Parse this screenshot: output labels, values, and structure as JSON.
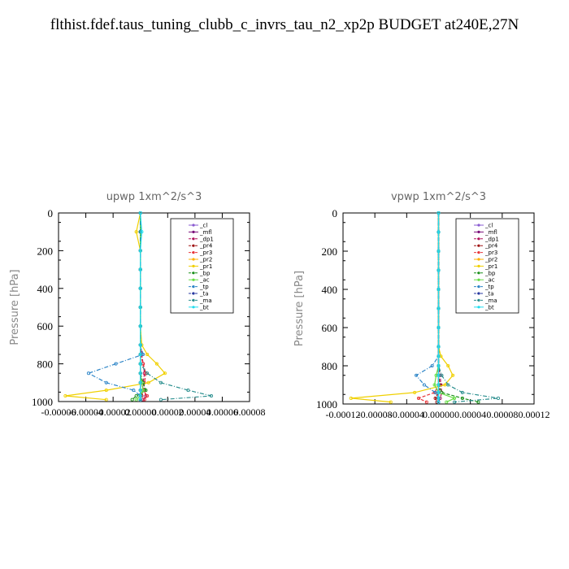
{
  "title": "flthist.fdef.taus_tuning_clubb_c_invrs_tau_n2_xp2p  BUDGET at240E,27N",
  "colors": {
    "_cl": "#8a5bd1",
    "_mfl": "#7a0f7a",
    "_dp1": "#b0125c",
    "_pr4": "#a01616",
    "_pr3": "#e8363a",
    "_pr2": "#ffb000",
    "_pr1": "#f0d000",
    "_bp": "#1a8f1a",
    "_ac": "#66dd44",
    "_tp": "#2f86c8",
    "_ta": "#2838a0",
    "_ma": "#2b8f8f",
    "_bt": "#22ddee"
  },
  "chart_data": [
    {
      "type": "line",
      "title": "upwp   1xm^2/s^3",
      "ylabel": "Pressure [hPa]",
      "ylim": [
        1000,
        0
      ],
      "yticks": [
        "0",
        "200",
        "400",
        "600",
        "800",
        "1000"
      ],
      "xlim": [
        -6e-05,
        8e-05
      ],
      "xticks": [
        "-0.00006",
        "-0.00004",
        "-0.00002",
        "0.00000",
        "0.00002",
        "0.00004",
        "0.00006",
        "0.00008"
      ],
      "legend_position": "top-right",
      "legend": [
        "_cl",
        "_mfl",
        "_dp1",
        "_pr4",
        "_pr3",
        "_pr2",
        "_pr1",
        "_bp",
        "_ac",
        "_tp",
        "_ta",
        "_ma",
        "_bt"
      ],
      "series": [
        {
          "name": "_cl",
          "x": [
            0,
            0,
            0,
            0,
            0,
            0,
            0,
            0,
            0,
            0,
            0,
            0,
            0,
            0,
            0
          ],
          "y": [
            0,
            100,
            200,
            300,
            400,
            500,
            600,
            700,
            750,
            800,
            850,
            900,
            940,
            970,
            990
          ]
        },
        {
          "name": "_mfl",
          "x": [
            0,
            0,
            0,
            0,
            0,
            0,
            0,
            0,
            0,
            0,
            0,
            0,
            0,
            0,
            0
          ],
          "y": [
            0,
            100,
            200,
            300,
            400,
            500,
            600,
            700,
            750,
            800,
            850,
            900,
            940,
            970,
            990
          ]
        },
        {
          "name": "_dp1",
          "x": [
            0,
            0,
            0,
            0,
            0,
            0,
            0,
            0,
            1e-06,
            2e-06,
            3e-06,
            2e-06,
            3e-06,
            4e-06,
            2e-06
          ],
          "y": [
            0,
            100,
            200,
            300,
            400,
            500,
            600,
            700,
            750,
            800,
            850,
            900,
            940,
            970,
            990
          ]
        },
        {
          "name": "_pr4",
          "x": [
            0,
            0,
            0,
            0,
            0,
            0,
            0,
            0,
            0,
            0,
            0,
            1e-06,
            2e-06,
            1e-06,
            0
          ],
          "y": [
            0,
            100,
            200,
            300,
            400,
            500,
            600,
            700,
            750,
            800,
            850,
            900,
            940,
            970,
            990
          ]
        },
        {
          "name": "_pr3",
          "x": [
            0,
            0,
            0,
            0,
            0,
            0,
            0,
            0,
            0,
            2e-06,
            4e-06,
            3e-06,
            2e-06,
            5e-06,
            3e-06
          ],
          "y": [
            0,
            100,
            200,
            300,
            400,
            500,
            600,
            700,
            750,
            800,
            850,
            900,
            940,
            970,
            990
          ]
        },
        {
          "name": "_pr2",
          "x": [
            0,
            0,
            0,
            0,
            0,
            0,
            0,
            0,
            0,
            0,
            0,
            0,
            0,
            0,
            0
          ],
          "y": [
            0,
            100,
            200,
            300,
            400,
            500,
            600,
            700,
            750,
            800,
            850,
            900,
            940,
            970,
            990
          ]
        },
        {
          "name": "_pr1",
          "x": [
            0,
            -3e-06,
            0,
            0,
            0,
            0,
            0,
            1e-06,
            5e-06,
            1.2e-05,
            1.8e-05,
            6e-06,
            -2.5e-05,
            -5.5e-05,
            -2.5e-05
          ],
          "y": [
            0,
            100,
            200,
            300,
            400,
            500,
            600,
            700,
            750,
            800,
            850,
            900,
            940,
            970,
            990
          ]
        },
        {
          "name": "_bp",
          "x": [
            0,
            0,
            0,
            0,
            0,
            0,
            0,
            0,
            0,
            0,
            0,
            2e-06,
            4e-06,
            -3e-06,
            -6e-06
          ],
          "y": [
            0,
            100,
            200,
            300,
            400,
            500,
            600,
            700,
            750,
            800,
            850,
            900,
            940,
            970,
            990
          ]
        },
        {
          "name": "_ac",
          "x": [
            0,
            0,
            0,
            0,
            0,
            0,
            0,
            0,
            0,
            0,
            0,
            1e-06,
            2e-06,
            0,
            -3e-06
          ],
          "y": [
            0,
            100,
            200,
            300,
            400,
            500,
            600,
            700,
            750,
            800,
            850,
            900,
            940,
            970,
            990
          ]
        },
        {
          "name": "_tp",
          "x": [
            0,
            0,
            0,
            0,
            0,
            0,
            0,
            0,
            2e-06,
            -1.8e-05,
            -3.8e-05,
            -2.5e-05,
            -5e-06,
            0,
            0
          ],
          "y": [
            0,
            100,
            200,
            300,
            400,
            500,
            600,
            700,
            750,
            800,
            850,
            900,
            940,
            970,
            990
          ]
        },
        {
          "name": "_ta",
          "x": [
            0,
            0,
            0,
            0,
            0,
            0,
            0,
            0,
            0,
            0,
            0,
            0,
            0,
            0,
            0
          ],
          "y": [
            0,
            100,
            200,
            300,
            400,
            500,
            600,
            700,
            750,
            800,
            850,
            900,
            940,
            970,
            990
          ]
        },
        {
          "name": "_ma",
          "x": [
            0,
            0,
            0,
            0,
            0,
            0,
            0,
            0,
            0,
            0,
            5e-06,
            1.5e-05,
            3.5e-05,
            5.2e-05,
            1.5e-05
          ],
          "y": [
            0,
            100,
            200,
            300,
            400,
            500,
            600,
            700,
            750,
            800,
            850,
            900,
            940,
            970,
            990
          ]
        },
        {
          "name": "_bt",
          "x": [
            0,
            1e-06,
            0,
            0,
            0,
            0,
            0,
            0,
            0,
            0,
            0,
            0,
            0,
            0,
            0
          ],
          "y": [
            0,
            100,
            200,
            300,
            400,
            500,
            600,
            700,
            750,
            800,
            850,
            900,
            940,
            970,
            990
          ]
        }
      ]
    },
    {
      "type": "line",
      "title": "vpwp   1xm^2/s^3",
      "ylabel": "Pressure [hPa]",
      "ylim": [
        1000,
        0
      ],
      "yticks": [
        "0",
        "200",
        "400",
        "600",
        "800",
        "1000"
      ],
      "xlim": [
        -0.00012,
        0.00012
      ],
      "xticks": [
        "-0.00012",
        "-0.00008",
        "-0.00004",
        "0.00000",
        "0.00004",
        "0.00008",
        "0.00012"
      ],
      "legend_position": "top-right",
      "legend": [
        "_cl",
        "_mfl",
        "_dp1",
        "_pr4",
        "_pr3",
        "_pr2",
        "_pr1",
        "_bp",
        "_ac",
        "_tp",
        "_ta",
        "_ma",
        "_bt"
      ],
      "series": [
        {
          "name": "_cl",
          "x": [
            0,
            0,
            0,
            0,
            0,
            0,
            0,
            0,
            0,
            0,
            0,
            0,
            0,
            0,
            0
          ],
          "y": [
            0,
            100,
            200,
            300,
            400,
            500,
            600,
            700,
            750,
            800,
            850,
            900,
            940,
            970,
            990
          ]
        },
        {
          "name": "_mfl",
          "x": [
            0,
            0,
            0,
            0,
            0,
            0,
            0,
            0,
            0,
            0,
            0,
            0,
            0,
            0,
            0
          ],
          "y": [
            0,
            100,
            200,
            300,
            400,
            500,
            600,
            700,
            750,
            800,
            850,
            900,
            940,
            970,
            990
          ]
        },
        {
          "name": "_dp1",
          "x": [
            0,
            0,
            0,
            0,
            0,
            0,
            0,
            0,
            0,
            0,
            2e-06,
            3e-06,
            4e-06,
            2e-06,
            0
          ],
          "y": [
            0,
            100,
            200,
            300,
            400,
            500,
            600,
            700,
            750,
            800,
            850,
            900,
            940,
            970,
            990
          ]
        },
        {
          "name": "_pr4",
          "x": [
            0,
            0,
            0,
            0,
            0,
            0,
            0,
            0,
            0,
            0,
            0,
            2e-06,
            0,
            -4e-06,
            -2e-06
          ],
          "y": [
            0,
            100,
            200,
            300,
            400,
            500,
            600,
            700,
            750,
            800,
            850,
            900,
            940,
            970,
            990
          ]
        },
        {
          "name": "_pr3",
          "x": [
            0,
            0,
            0,
            0,
            0,
            0,
            0,
            0,
            0,
            0,
            0,
            0,
            -5e-06,
            -2.5e-05,
            -1.5e-05
          ],
          "y": [
            0,
            100,
            200,
            300,
            400,
            500,
            600,
            700,
            750,
            800,
            850,
            900,
            940,
            970,
            990
          ]
        },
        {
          "name": "_pr2",
          "x": [
            0,
            0,
            0,
            0,
            0,
            0,
            0,
            0,
            0,
            0,
            0,
            0,
            0,
            0,
            0
          ],
          "y": [
            0,
            100,
            200,
            300,
            400,
            500,
            600,
            700,
            750,
            800,
            850,
            900,
            940,
            970,
            990
          ]
        },
        {
          "name": "_pr1",
          "x": [
            0,
            0,
            0,
            0,
            0,
            0,
            0,
            0,
            3e-06,
            1.2e-05,
            1.8e-05,
            8e-06,
            -3e-05,
            -0.00011,
            -6e-05
          ],
          "y": [
            0,
            100,
            200,
            300,
            400,
            500,
            600,
            700,
            750,
            800,
            850,
            900,
            940,
            970,
            990
          ]
        },
        {
          "name": "_bp",
          "x": [
            0,
            0,
            0,
            0,
            0,
            0,
            0,
            0,
            0,
            0,
            0,
            0,
            4e-06,
            3e-05,
            5e-05
          ],
          "y": [
            0,
            100,
            200,
            300,
            400,
            500,
            600,
            700,
            750,
            800,
            850,
            900,
            940,
            970,
            990
          ]
        },
        {
          "name": "_ac",
          "x": [
            0,
            0,
            0,
            0,
            0,
            0,
            0,
            0,
            0,
            0,
            -3e-06,
            -5e-06,
            0,
            2e-05,
            1e-05
          ],
          "y": [
            0,
            100,
            200,
            300,
            400,
            500,
            600,
            700,
            750,
            800,
            850,
            900,
            940,
            970,
            990
          ]
        },
        {
          "name": "_tp",
          "x": [
            0,
            0,
            0,
            0,
            0,
            0,
            0,
            0,
            0,
            -8e-06,
            -2.8e-05,
            -1.8e-05,
            -4e-06,
            0,
            0
          ],
          "y": [
            0,
            100,
            200,
            300,
            400,
            500,
            600,
            700,
            750,
            800,
            850,
            900,
            940,
            970,
            990
          ]
        },
        {
          "name": "_ta",
          "x": [
            0,
            0,
            0,
            0,
            0,
            0,
            0,
            0,
            0,
            0,
            0,
            0,
            0,
            0,
            0
          ],
          "y": [
            0,
            100,
            200,
            300,
            400,
            500,
            600,
            700,
            750,
            800,
            850,
            900,
            940,
            970,
            990
          ]
        },
        {
          "name": "_ma",
          "x": [
            0,
            0,
            0,
            0,
            0,
            0,
            0,
            0,
            0,
            0,
            4e-06,
            1.2e-05,
            3e-05,
            7.5e-05,
            2e-05
          ],
          "y": [
            0,
            100,
            200,
            300,
            400,
            500,
            600,
            700,
            750,
            800,
            850,
            900,
            940,
            970,
            990
          ]
        },
        {
          "name": "_bt",
          "x": [
            0,
            0,
            0,
            0,
            0,
            0,
            0,
            0,
            0,
            0,
            0,
            0,
            0,
            0,
            0
          ],
          "y": [
            0,
            100,
            200,
            300,
            400,
            500,
            600,
            700,
            750,
            800,
            850,
            900,
            940,
            970,
            990
          ]
        }
      ]
    }
  ]
}
